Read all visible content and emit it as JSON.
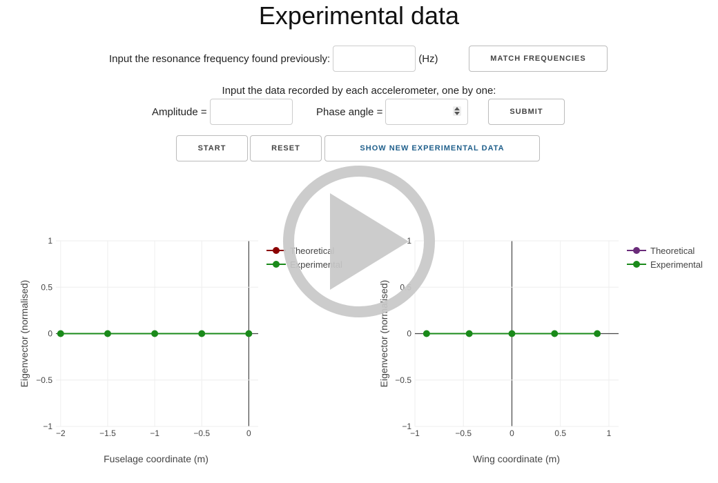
{
  "page": {
    "title": "Experimental data"
  },
  "controls": {
    "resonance_label": "Input the resonance frequency found previously:",
    "resonance_value": "",
    "hz_label": "(Hz)",
    "match_button": "MATCH FREQUENCIES",
    "accel_instruction": "Input the data recorded by each accelerometer, one by one:",
    "amplitude_label": "Amplitude =",
    "amplitude_value": "",
    "phase_label": "Phase angle =",
    "phase_value": "",
    "submit_button": "SUBMIT",
    "start_button": "START",
    "reset_button": "RESET",
    "show_button": "SHOW NEW EXPERIMENTAL DATA"
  },
  "overlay": {
    "icon": "play-icon",
    "color": "#c8c8c8"
  },
  "chart_data": [
    {
      "type": "line",
      "xlabel": "Fuselage coordinate (m)",
      "ylabel": "Eigenvector (normalised)",
      "xlim": [
        -2.05,
        0.1
      ],
      "ylim": [
        -1,
        1
      ],
      "xticks": [
        -2,
        -1.5,
        -1,
        -0.5,
        0
      ],
      "xtick_labels": [
        "−2",
        "−1.5",
        "−1",
        "−0.5",
        "0"
      ],
      "yticks": [
        -1,
        -0.5,
        0,
        0.5,
        1
      ],
      "ytick_labels": [
        "−1",
        "−0.5",
        "0",
        "0.5",
        "1"
      ],
      "legend_position": "top-right",
      "series": [
        {
          "name": "Theoretical",
          "color": "#8b0000",
          "x": [],
          "y": []
        },
        {
          "name": "Experimental",
          "color": "#1a8a1a",
          "x": [
            -2,
            -1.5,
            -1,
            -0.5,
            0
          ],
          "y": [
            0,
            0,
            0,
            0,
            0
          ]
        }
      ]
    },
    {
      "type": "line",
      "xlabel": "Wing coordinate (m)",
      "ylabel": "Eigenvector (normalised)",
      "xlim": [
        -1,
        1.1
      ],
      "ylim": [
        -1,
        1
      ],
      "xticks": [
        -1,
        -0.5,
        0,
        0.5,
        1
      ],
      "xtick_labels": [
        "−1",
        "−0.5",
        "0",
        "0.5",
        "1"
      ],
      "yticks": [
        -1,
        -0.5,
        0,
        0.5,
        1
      ],
      "ytick_labels": [
        "−1",
        "−0.5",
        "0",
        "0.5",
        "1"
      ],
      "legend_position": "top-right",
      "series": [
        {
          "name": "Theoretical",
          "color": "#6a2c7a",
          "x": [],
          "y": []
        },
        {
          "name": "Experimental",
          "color": "#1a8a1a",
          "x": [
            -0.88,
            -0.44,
            0,
            0.44,
            0.88
          ],
          "y": [
            0,
            0,
            0,
            0,
            0
          ]
        }
      ]
    }
  ]
}
